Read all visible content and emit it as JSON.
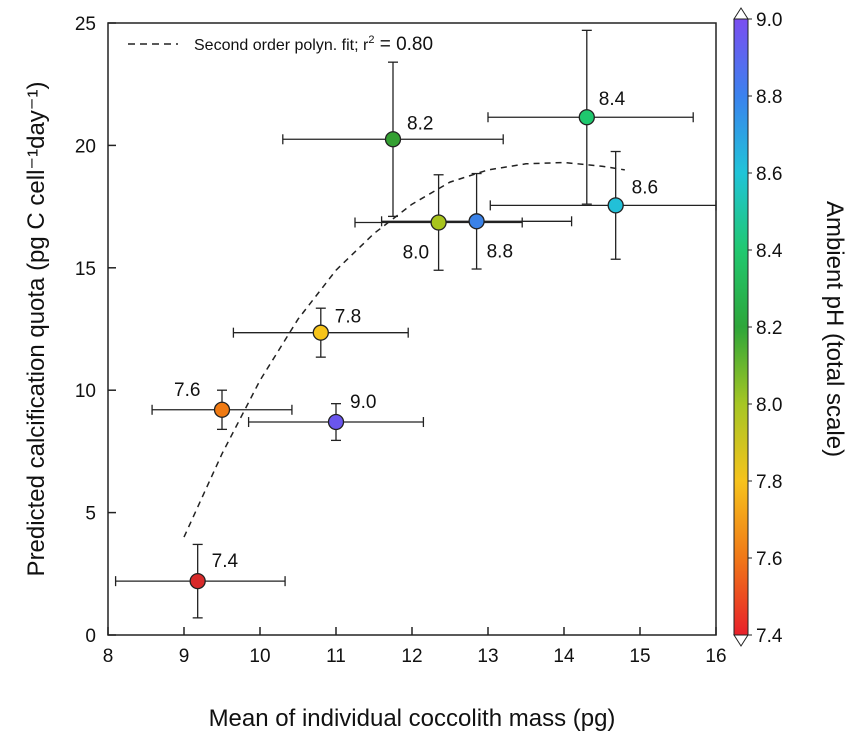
{
  "chart_data": {
    "type": "scatter",
    "xlabel": "Mean of individual coccolith mass (pg)",
    "ylabel": "Predicted calcification quota (pg C cell⁻¹day⁻¹)",
    "xlim": [
      8,
      16
    ],
    "ylim": [
      0,
      25
    ],
    "x_ticks": [
      "8",
      "9",
      "10",
      "11",
      "12",
      "13",
      "14",
      "15",
      "16"
    ],
    "y_ticks": [
      "0",
      "5",
      "10",
      "15",
      "20",
      "25"
    ],
    "grid": false,
    "legend": {
      "placement": "top-left",
      "entries": [
        {
          "label": "Second order polyn. fit; r",
          "superscript": "2",
          "suffix": " = 0.80",
          "style": "dashed"
        }
      ]
    },
    "points": [
      {
        "label": "7.4",
        "ph": 7.4,
        "x": 9.18,
        "y": 2.2,
        "x_err_low": 1.08,
        "x_err_high": 1.15,
        "y_err_low": 1.5,
        "y_err_high": 1.5,
        "color": "#d82a2a"
      },
      {
        "label": "7.6",
        "ph": 7.6,
        "x": 9.5,
        "y": 9.2,
        "x_err_low": 0.92,
        "x_err_high": 0.92,
        "y_err_low": 0.8,
        "y_err_high": 0.8,
        "color": "#f07a12"
      },
      {
        "label": "7.8",
        "ph": 7.8,
        "x": 10.8,
        "y": 12.35,
        "x_err_low": 1.15,
        "x_err_high": 1.15,
        "y_err_low": 1.0,
        "y_err_high": 1.0,
        "color": "#f7c41a"
      },
      {
        "label": "8.0",
        "ph": 8.0,
        "x": 12.35,
        "y": 16.85,
        "x_err_low": 1.1,
        "x_err_high": 1.1,
        "y_err_low": 1.95,
        "y_err_high": 1.95,
        "color": "#a8c41c"
      },
      {
        "label": "8.2",
        "ph": 8.2,
        "x": 11.75,
        "y": 20.25,
        "x_err_low": 1.45,
        "x_err_high": 1.45,
        "y_err_low": 3.15,
        "y_err_high": 3.15,
        "color": "#34a032"
      },
      {
        "label": "8.4",
        "ph": 8.4,
        "x": 14.3,
        "y": 21.15,
        "x_err_low": 1.3,
        "x_err_high": 1.4,
        "y_err_low": 3.55,
        "y_err_high": 3.55,
        "color": "#1fc86e"
      },
      {
        "label": "8.6",
        "ph": 8.6,
        "x": 14.68,
        "y": 17.55,
        "x_err_low": 1.65,
        "x_err_high": 1.35,
        "y_err_low": 2.2,
        "y_err_high": 2.2,
        "color": "#22c0d8"
      },
      {
        "label": "8.8",
        "ph": 8.8,
        "x": 12.85,
        "y": 16.9,
        "x_err_low": 1.25,
        "x_err_high": 1.25,
        "y_err_low": 1.95,
        "y_err_high": 1.95,
        "color": "#3a82e8"
      },
      {
        "label": "9.0",
        "ph": 9.0,
        "x": 11.0,
        "y": 8.7,
        "x_err_low": 1.15,
        "x_err_high": 1.15,
        "y_err_low": 0.75,
        "y_err_high": 0.75,
        "color": "#6a56ee"
      }
    ],
    "fit_curve": {
      "name": "Second order polyn. fit",
      "r2": 0.8,
      "points": [
        [
          9.0,
          4.0
        ],
        [
          9.5,
          7.4
        ],
        [
          10.0,
          10.4
        ],
        [
          10.5,
          12.9
        ],
        [
          11.0,
          14.9
        ],
        [
          11.5,
          16.4
        ],
        [
          12.0,
          17.6
        ],
        [
          12.5,
          18.5
        ],
        [
          13.0,
          19.0
        ],
        [
          13.5,
          19.25
        ],
        [
          14.0,
          19.3
        ],
        [
          14.5,
          19.15
        ],
        [
          14.8,
          19.0
        ]
      ]
    },
    "colorbar": {
      "label": "Ambient pH (total scale)",
      "min": 7.4,
      "max": 9.0,
      "ticks": [
        "7.4",
        "7.6",
        "7.8",
        "8.0",
        "8.2",
        "8.4",
        "8.6",
        "8.8",
        "9.0"
      ],
      "colors": [
        "#e8202a",
        "#f07818",
        "#f6c31c",
        "#a6c624",
        "#2ea63a",
        "#20c870",
        "#20c4d8",
        "#3b82ee",
        "#7a4ef0"
      ]
    }
  }
}
